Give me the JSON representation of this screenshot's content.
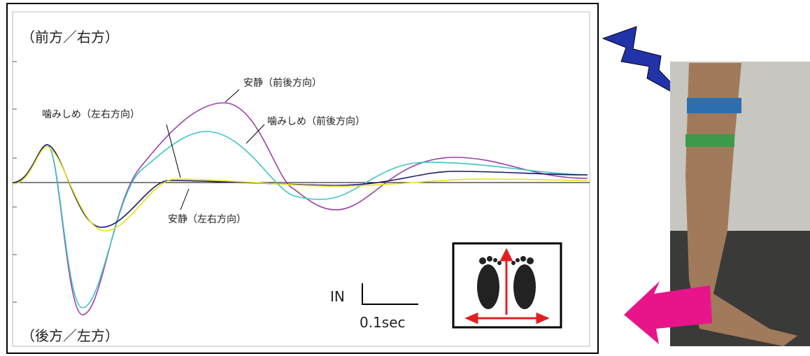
{
  "chart": {
    "top_label": "（前方／右方）",
    "bottom_label": "（後方／左方）",
    "annotations": [
      "安静（前後方向）",
      "噛みしめ（左右方向）",
      "噛みしめ（前後方向）",
      "安静（左右方向）"
    ],
    "scale": {
      "y_label": "IN",
      "x_label": "0.1sec"
    }
  }
}
